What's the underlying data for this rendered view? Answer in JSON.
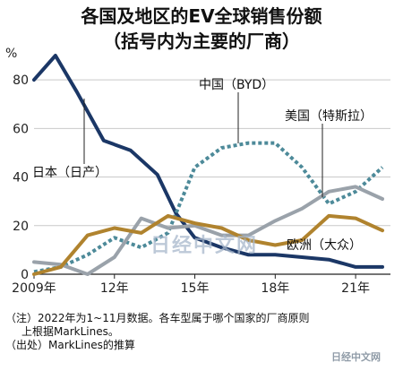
{
  "header": {
    "title_line1": "各国及地区的EV全球销售份额",
    "title_line2": "（括号内为主要的厂商）"
  },
  "notes": {
    "line1": "（注）2022年为1~11月数据。各车型属于哪个国家的厂商原则",
    "line2": "上根据MarkLines。",
    "line3": "（出处）MarkLines的推算"
  },
  "watermark": {
    "main": "日经中文网",
    "corner": "日经中文网"
  },
  "chart_data": {
    "type": "line",
    "ylabel": "%",
    "ylim": [
      0,
      90
    ],
    "yticks": [
      0,
      20,
      40,
      60,
      80
    ],
    "xlim": [
      2009,
      2022.3
    ],
    "xticks": [
      {
        "value": 2009,
        "label": "2009年"
      },
      {
        "value": 2012,
        "label": "12年"
      },
      {
        "value": 2015,
        "label": "15年"
      },
      {
        "value": 2018,
        "label": "18年"
      },
      {
        "value": 2021,
        "label": "21年"
      }
    ],
    "grid": true,
    "series": [
      {
        "name": "日本（日产）",
        "color": "#1b3766",
        "style": "solid",
        "points": [
          [
            2009,
            80
          ],
          [
            2009.8,
            90
          ],
          [
            2010.6,
            75
          ],
          [
            2011.6,
            55
          ],
          [
            2012.6,
            51
          ],
          [
            2013.6,
            41
          ],
          [
            2014.3,
            25
          ],
          [
            2015,
            15
          ],
          [
            2016,
            11
          ],
          [
            2017,
            8
          ],
          [
            2018,
            8
          ],
          [
            2019,
            7
          ],
          [
            2020,
            6
          ],
          [
            2021,
            3
          ],
          [
            2022,
            3
          ]
        ]
      },
      {
        "name": "中国（BYD）",
        "color": "#4d8a99",
        "style": "dotted",
        "points": [
          [
            2009,
            1
          ],
          [
            2010,
            3
          ],
          [
            2011,
            8
          ],
          [
            2012,
            15
          ],
          [
            2013,
            11
          ],
          [
            2014,
            17
          ],
          [
            2015,
            44
          ],
          [
            2016,
            52
          ],
          [
            2017,
            54
          ],
          [
            2018,
            54
          ],
          [
            2019,
            44
          ],
          [
            2020,
            29
          ],
          [
            2021,
            34
          ],
          [
            2022,
            44
          ]
        ]
      },
      {
        "name": "美国（特斯拉）",
        "color": "#9aa2aa",
        "style": "solid",
        "points": [
          [
            2009,
            5
          ],
          [
            2010,
            4
          ],
          [
            2011,
            0
          ],
          [
            2012,
            7
          ],
          [
            2013,
            23
          ],
          [
            2014,
            19
          ],
          [
            2015,
            20
          ],
          [
            2016,
            16
          ],
          [
            2017,
            16
          ],
          [
            2018,
            22
          ],
          [
            2019,
            27
          ],
          [
            2020,
            34
          ],
          [
            2021,
            36
          ],
          [
            2022,
            31
          ]
        ]
      },
      {
        "name": "欧洲（大众）",
        "color": "#b0832e",
        "style": "solid",
        "points": [
          [
            2009,
            0
          ],
          [
            2010,
            3
          ],
          [
            2011,
            16
          ],
          [
            2012,
            19
          ],
          [
            2013,
            17
          ],
          [
            2014,
            24
          ],
          [
            2015,
            21
          ],
          [
            2016,
            19
          ],
          [
            2017,
            14
          ],
          [
            2018,
            12
          ],
          [
            2019,
            14
          ],
          [
            2020,
            24
          ],
          [
            2021,
            23
          ],
          [
            2022,
            18
          ]
        ]
      }
    ]
  }
}
